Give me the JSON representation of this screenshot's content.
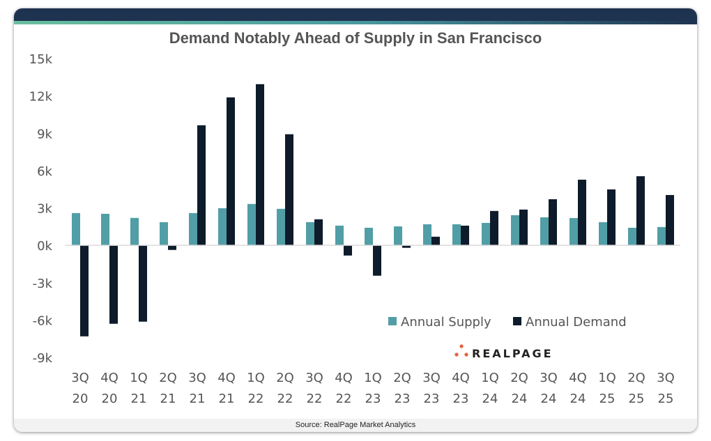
{
  "chart_data": {
    "type": "bar",
    "title": "Demand Notably Ahead of Supply in San Francisco",
    "categories": [
      "3Q 20",
      "4Q 20",
      "1Q 21",
      "2Q 21",
      "3Q 21",
      "4Q 21",
      "1Q 22",
      "2Q 22",
      "3Q 22",
      "4Q 22",
      "1Q 23",
      "2Q 23",
      "3Q 23",
      "4Q 23",
      "1Q 24",
      "2Q 24",
      "3Q 24",
      "4Q 24",
      "1Q 25",
      "2Q 25",
      "3Q 25"
    ],
    "series": [
      {
        "name": "Annual Supply",
        "color": "#519ea6",
        "values": [
          2590,
          2530,
          2200,
          1860,
          2590,
          2980,
          3320,
          2930,
          1860,
          1580,
          1410,
          1520,
          1690,
          1690,
          1800,
          2420,
          2250,
          2190,
          1860,
          1410,
          1470
        ]
      },
      {
        "name": "Annual Demand",
        "color": "#0d1b2a",
        "values": [
          -7310,
          -6300,
          -6130,
          -370,
          9640,
          11880,
          12940,
          8920,
          2090,
          -820,
          -2440,
          -200,
          690,
          1580,
          2760,
          2870,
          3700,
          5270,
          4490,
          5550,
          4040
        ]
      }
    ],
    "ylim": [
      -9000,
      15000
    ],
    "yticks": [
      15000,
      12000,
      9000,
      6000,
      3000,
      0,
      -3000,
      -6000,
      -9000
    ],
    "ytick_labels": [
      "15k",
      "12k",
      "9k",
      "6k",
      "3k",
      "0k",
      "-3k",
      "-6k",
      "-9k"
    ],
    "xlabel": "",
    "ylabel": "",
    "grid": false,
    "legend_placement": "bottom-right"
  },
  "source": "Source: RealPage Market Analytics",
  "logo": "REALPAGE",
  "colors": {
    "header": "#1e3350",
    "logo_dots": "#e8603c"
  }
}
